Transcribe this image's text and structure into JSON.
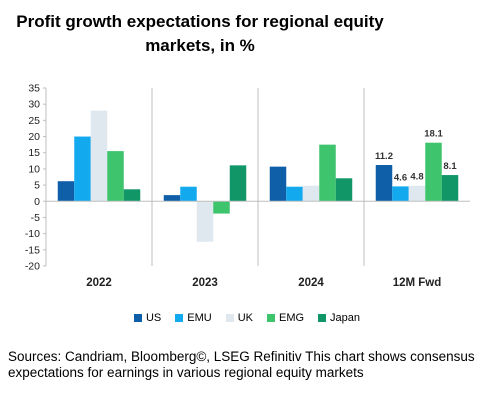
{
  "chart_data": {
    "type": "bar",
    "title_line1": "Profit growth expectations for regional equity",
    "title_line2": "markets, in %",
    "categories": [
      "2022",
      "2023",
      "2024",
      "12M Fwd"
    ],
    "ylim": [
      -20,
      35
    ],
    "yticks": [
      "35",
      "30",
      "25",
      "20",
      "15",
      "10",
      "5",
      "0",
      "-5",
      "-10",
      "-15",
      "-20"
    ],
    "series": [
      {
        "name": "US",
        "color": "#0e5fa8",
        "values": [
          6.2,
          1.9,
          10.7,
          11.2
        ]
      },
      {
        "name": "EMU",
        "color": "#13a9ef",
        "values": [
          20.0,
          4.5,
          4.5,
          4.6
        ]
      },
      {
        "name": "UK",
        "color": "#dfe8ef",
        "values": [
          28.0,
          -12.5,
          4.8,
          4.8
        ]
      },
      {
        "name": "EMG",
        "color": "#3dc46c",
        "values": [
          15.5,
          -3.8,
          17.5,
          18.1
        ]
      },
      {
        "name": "Japan",
        "color": "#119668",
        "values": [
          3.7,
          11.1,
          7.1,
          8.1
        ]
      }
    ],
    "data_labels": [
      {
        "category": 3,
        "series": 0,
        "text": "11.2"
      },
      {
        "category": 3,
        "series": 1,
        "text": "4.6"
      },
      {
        "category": 3,
        "series": 2,
        "text": "4.8"
      },
      {
        "category": 3,
        "series": 3,
        "text": "18.1"
      },
      {
        "category": 3,
        "series": 4,
        "text": "8.1"
      }
    ],
    "grid": false,
    "legend_position": "bottom"
  },
  "source_text": "Sources: Candriam, Bloomberg©, LSEG Refinitiv This chart shows consensus expectations for earnings in various regional equity markets"
}
